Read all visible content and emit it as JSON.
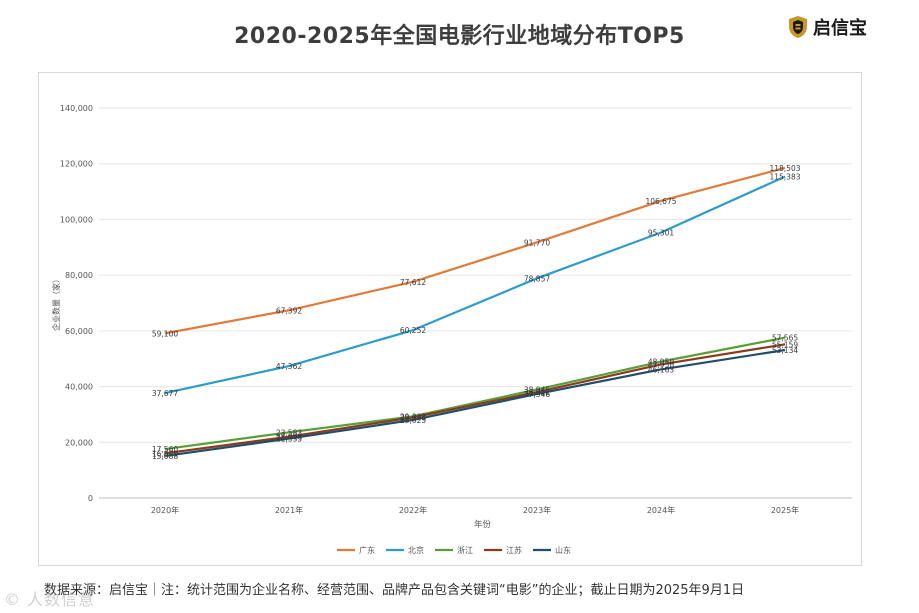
{
  "title": "2020-2025年全国电影行业地域分布TOP5",
  "logo": {
    "text": "启信宝",
    "icon": "shield-logo-icon",
    "color": "#c9962b"
  },
  "footer": "数据来源：启信宝｜注：统计范围为企业名称、经营范围、品牌产品包含关键词“电影”的企业；截止日期为2025年9月1日",
  "watermark": "© 人数信意",
  "chart_data": {
    "type": "line",
    "title": "2020-2025年全国电影行业地域分布TOP5",
    "xlabel": "年份",
    "ylabel": "企业数量（家）",
    "ylim": [
      0,
      140000
    ],
    "yticks": [
      0,
      20000,
      40000,
      60000,
      80000,
      100000,
      120000,
      140000
    ],
    "ytick_labels": [
      "0",
      "20,000",
      "40,000",
      "60,000",
      "80,000",
      "100,000",
      "120,000",
      "140,000"
    ],
    "grid": true,
    "legend_position": "bottom",
    "categories": [
      "2020年",
      "2021年",
      "2022年",
      "2023年",
      "2024年",
      "2025年"
    ],
    "series": [
      {
        "name": "广东",
        "color": "#e07b39",
        "values": [
          59100,
          67392,
          77612,
          91770,
          106675,
          118503
        ],
        "labels": [
          "59,100",
          "67,392",
          "77,612",
          "91,770",
          "106,675",
          "118,503"
        ]
      },
      {
        "name": "北京",
        "color": "#2e9ccb",
        "values": [
          37677,
          47362,
          60252,
          78857,
          95301,
          115383
        ],
        "labels": [
          "37,677",
          "47,362",
          "60,252",
          "78,857",
          "95,301",
          "115,383"
        ]
      },
      {
        "name": "浙江",
        "color": "#5a9e3a",
        "values": [
          17560,
          23583,
          29303,
          38945,
          48950,
          57565
        ],
        "labels": [
          "17,560",
          "23,583",
          "29,303",
          "38,945",
          "48,950",
          "57,565"
        ]
      },
      {
        "name": "江苏",
        "color": "#8b3a1a",
        "values": [
          16050,
          22008,
          28946,
          38012,
          47950,
          55159
        ],
        "labels": [
          "16,050",
          "22,008",
          "28,946",
          "38,012",
          "47,950",
          "55,159"
        ]
      },
      {
        "name": "山东",
        "color": "#1f4e6b",
        "values": [
          15088,
          21335,
          28025,
          37346,
          46163,
          53134
        ],
        "labels": [
          "15,088",
          "21,335",
          "28,025",
          "37,346",
          "46,163",
          "53,134"
        ]
      }
    ]
  }
}
